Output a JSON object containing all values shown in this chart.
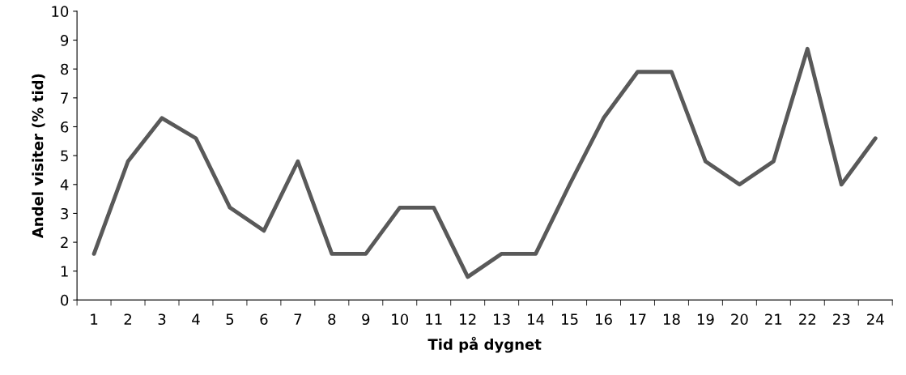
{
  "chart_data": {
    "type": "line",
    "xlabel": "Tid på dygnet",
    "ylabel": "Andel visiter (% tid)",
    "categories": [
      "1",
      "2",
      "3",
      "4",
      "5",
      "6",
      "7",
      "8",
      "9",
      "10",
      "11",
      "12",
      "13",
      "14",
      "15",
      "16",
      "17",
      "18",
      "19",
      "20",
      "21",
      "22",
      "23",
      "24"
    ],
    "series": [
      {
        "color": "#595959",
        "values": [
          1.6,
          4.8,
          6.3,
          5.6,
          3.2,
          2.4,
          4.8,
          1.6,
          1.6,
          3.2,
          3.2,
          0.8,
          1.6,
          1.6,
          4.0,
          6.3,
          7.9,
          7.9,
          4.8,
          4.0,
          4.8,
          8.7,
          4.0,
          5.6
        ]
      }
    ],
    "ylim": [
      0,
      10
    ],
    "yticks": [
      0,
      1,
      2,
      3,
      4,
      5,
      6,
      7,
      8,
      9,
      10
    ],
    "grid": false,
    "legend": false,
    "marker": "none",
    "line_style": "solid"
  }
}
